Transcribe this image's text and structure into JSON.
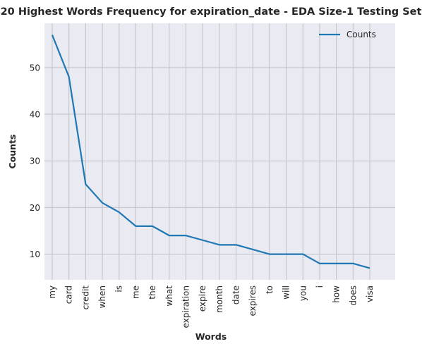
{
  "chart_data": {
    "type": "line",
    "title": "20 Highest Words Frequency for expiration_date - EDA Size-1 Testing Set",
    "xlabel": "Words",
    "ylabel": "Counts",
    "categories": [
      "my",
      "card",
      "credit",
      "when",
      "is",
      "me",
      "the",
      "what",
      "expiration",
      "expire",
      "month",
      "date",
      "expires",
      "to",
      "will",
      "you",
      "i",
      "how",
      "does",
      "visa"
    ],
    "series": [
      {
        "name": "Counts",
        "values": [
          57,
          48,
          25,
          21,
          19,
          16,
          16,
          14,
          14,
          13,
          12,
          12,
          11,
          10,
          10,
          10,
          8,
          8,
          8,
          7
        ]
      }
    ],
    "yticks": [
      10,
      20,
      30,
      40,
      50
    ],
    "ylim": [
      4.5,
      59.5
    ],
    "grid": true,
    "legend_position": "top-right"
  },
  "colors": {
    "background": "#eaeaf2",
    "grid": "#c0c0c6",
    "line": "#1f77b4",
    "text": "#262626"
  }
}
